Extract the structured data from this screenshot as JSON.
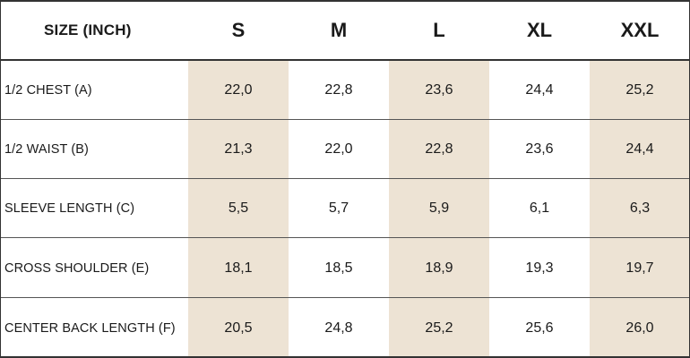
{
  "table": {
    "header": {
      "label": "SIZE (INCH)",
      "sizes": [
        "S",
        "M",
        "L",
        "XL",
        "XXL"
      ]
    },
    "rows": [
      {
        "label": "1/2 CHEST (A)",
        "values": [
          "22,0",
          "22,8",
          "23,6",
          "24,4",
          "25,2"
        ]
      },
      {
        "label": "1/2 WAIST (B)",
        "values": [
          "21,3",
          "22,0",
          "22,8",
          "23,6",
          "24,4"
        ]
      },
      {
        "label": "SLEEVE LENGTH (C)",
        "values": [
          "5,5",
          "5,7",
          "5,9",
          "6,1",
          "6,3"
        ]
      },
      {
        "label": "CROSS SHOULDER (E)",
        "values": [
          "18,1",
          "18,5",
          "18,9",
          "19,3",
          "19,7"
        ]
      },
      {
        "label": "CENTER BACK LENGTH (F)",
        "values": [
          "20,5",
          "24,8",
          "25,2",
          "25,6",
          "26,0"
        ]
      }
    ],
    "colors": {
      "shade": "#ede3d4",
      "border": "#333333",
      "text": "#1a1a1a"
    }
  }
}
